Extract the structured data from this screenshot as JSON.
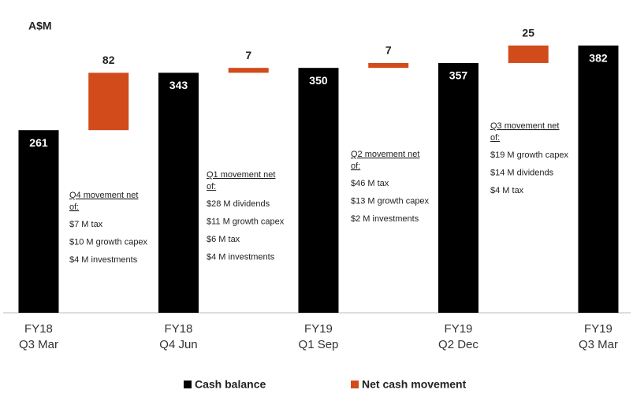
{
  "chart_data": {
    "type": "waterfall",
    "y_label": "A$M",
    "categories": [
      "FY18\nQ3 Mar",
      null,
      "FY18\nQ4 Jun",
      null,
      "FY19\nQ1 Sep",
      null,
      "FY19\nQ2 Dec",
      null,
      "FY19\nQ3 Mar"
    ],
    "series": [
      {
        "name": "Cash balance",
        "color": "#000000",
        "values": [
          261,
          null,
          343,
          null,
          350,
          null,
          357,
          null,
          382
        ]
      },
      {
        "name": "Net cash movement",
        "color": "#d24b1b",
        "values": [
          null,
          82,
          null,
          7,
          null,
          7,
          null,
          25,
          null
        ]
      }
    ],
    "ylim": [
      0,
      420
    ],
    "legend": "bottom",
    "annotations": [
      {
        "heading": "Q4 movement net\nof:",
        "items": [
          "$7 M tax",
          "$10 M growth capex",
          "$4 M investments"
        ]
      },
      {
        "heading": "Q1 movement net\nof:",
        "items": [
          "$28 M dividends",
          "$11 M growth capex",
          "$6 M tax",
          "$4 M investments"
        ]
      },
      {
        "heading": "Q2 movement net\nof:",
        "items": [
          "$46 M tax",
          "$13 M growth capex",
          "$2 M investments"
        ]
      },
      {
        "heading": "Q3 movement net\nof:",
        "items": [
          "$19 M growth capex",
          "$14 M dividends",
          "$4 M tax"
        ]
      }
    ]
  }
}
